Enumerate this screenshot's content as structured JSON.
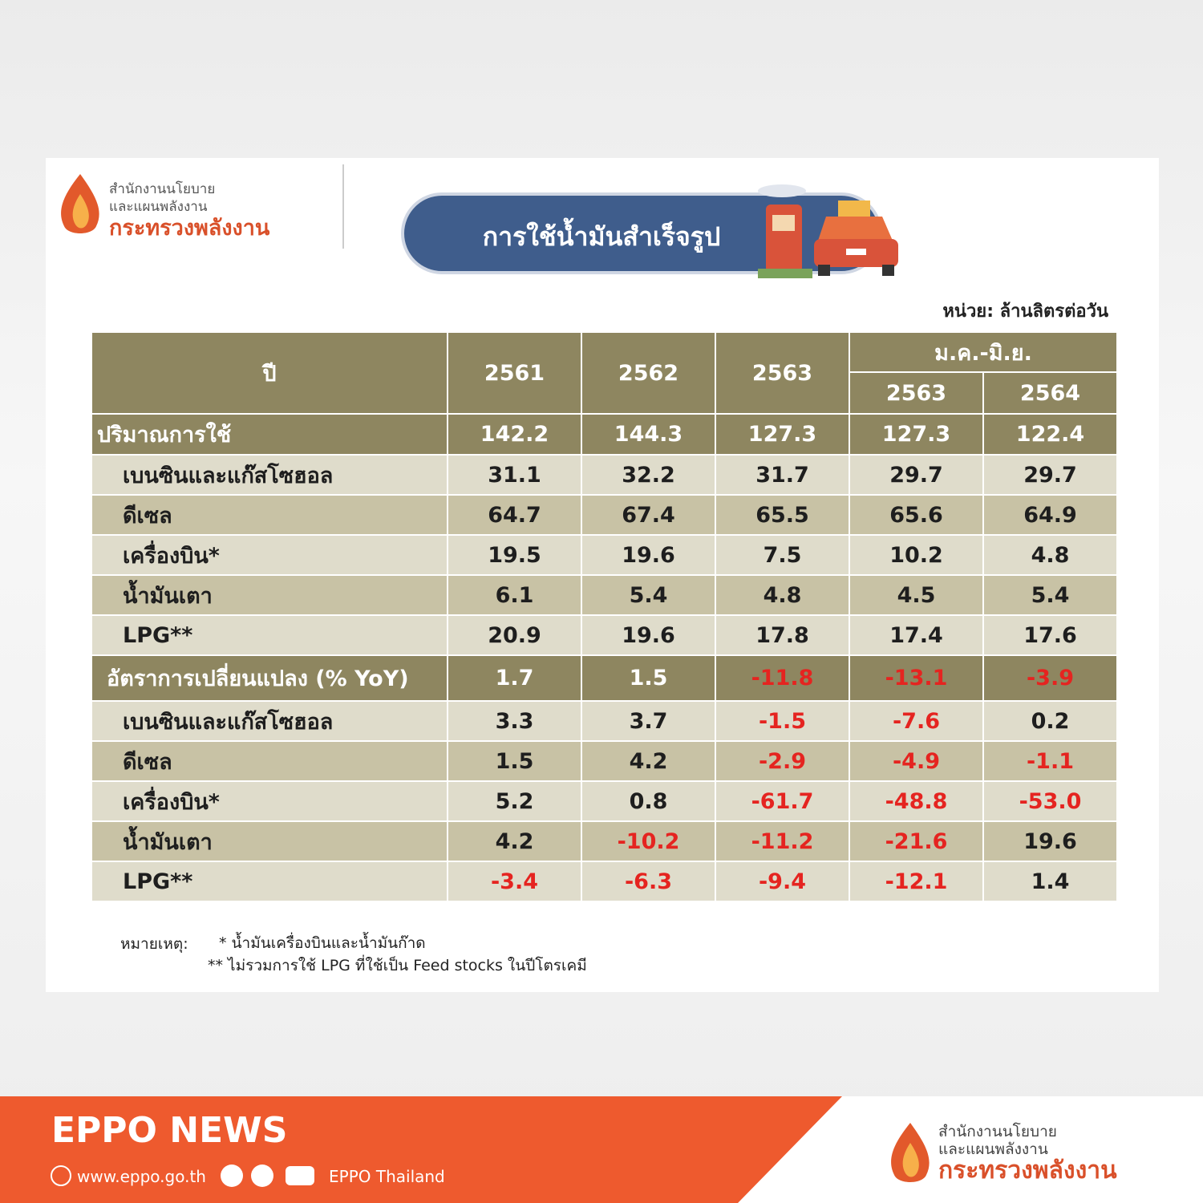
{
  "header": {
    "org_lines": [
      "สำนักงานนโยบาย",
      "และแผนพลังงาน",
      "กระทรวงพลังงาน"
    ],
    "title": "การใช้น้ำมันสำเร็จรูป",
    "unit": "หน่วย: ล้านลิตรต่อวัน"
  },
  "table": {
    "corner": "ปี",
    "years": [
      "2561",
      "2562",
      "2563"
    ],
    "group": "ม.ค.-มิ.ย.",
    "group_years": [
      "2563",
      "2564"
    ],
    "sections": [
      {
        "label": "ปริมาณการใช้",
        "values": [
          "142.2",
          "144.3",
          "127.3",
          "127.3",
          "122.4"
        ],
        "rows": [
          {
            "label": "เบนซินและแก๊สโซฮอล",
            "values": [
              "31.1",
              "32.2",
              "31.7",
              "29.7",
              "29.7"
            ]
          },
          {
            "label": "ดีเซล",
            "values": [
              "64.7",
              "67.4",
              "65.5",
              "65.6",
              "64.9"
            ]
          },
          {
            "label": "เครื่องบิน*",
            "values": [
              "19.5",
              "19.6",
              "7.5",
              "10.2",
              "4.8"
            ]
          },
          {
            "label": "น้ำมันเตา",
            "values": [
              "6.1",
              "5.4",
              "4.8",
              "4.5",
              "5.4"
            ]
          },
          {
            "label": "LPG**",
            "values": [
              "20.9",
              "19.6",
              "17.8",
              "17.4",
              "17.6"
            ]
          }
        ]
      },
      {
        "label": "อัตราการเปลี่ยนแปลง (% YoY)",
        "values": [
          "1.7",
          "1.5",
          "-11.8",
          "-13.1",
          "-3.9"
        ],
        "rows": [
          {
            "label": "เบนซินและแก๊สโซฮอล",
            "values": [
              "3.3",
              "3.7",
              "-1.5",
              "-7.6",
              "0.2"
            ]
          },
          {
            "label": "ดีเซล",
            "values": [
              "1.5",
              "4.2",
              "-2.9",
              "-4.9",
              "-1.1"
            ]
          },
          {
            "label": "เครื่องบิน*",
            "values": [
              "5.2",
              "0.8",
              "-61.7",
              "-48.8",
              "-53.0"
            ]
          },
          {
            "label": "น้ำมันเตา",
            "values": [
              "4.2",
              "-10.2",
              "-11.2",
              "-21.6",
              "19.6"
            ]
          },
          {
            "label": "LPG**",
            "values": [
              "-3.4",
              "-6.3",
              "-9.4",
              "-12.1",
              "1.4"
            ]
          }
        ]
      }
    ]
  },
  "notes": {
    "label": "หมายเหตุ:",
    "lines": [
      "* น้ำมันเครื่องบินและน้ำมันก๊าด",
      "** ไม่รวมการใช้ LPG ที่ใช้เป็น Feed stocks ในปีโตรเคมี"
    ]
  },
  "footer": {
    "title": "EPPO NEWS",
    "website": "www.eppo.go.th",
    "social": "EPPO Thailand",
    "org_lines": [
      "สำนักงานนโยบาย",
      "และแผนพลังงาน",
      "กระทรวงพลังงาน"
    ]
  }
}
